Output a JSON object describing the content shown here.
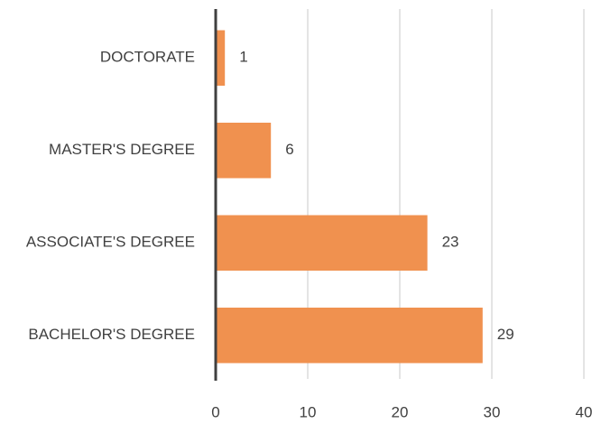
{
  "chart_data": {
    "type": "bar",
    "orientation": "horizontal",
    "categories": [
      "DOCTORATE",
      "MASTER'S DEGREE",
      "ASSOCIATE'S DEGREE",
      "BACHELOR'S DEGREE"
    ],
    "values": [
      1,
      6,
      23,
      29
    ],
    "color": "#f0914f",
    "xlim": [
      0,
      40
    ],
    "xticks": [
      0,
      10,
      20,
      30,
      40
    ],
    "grid": true
  }
}
